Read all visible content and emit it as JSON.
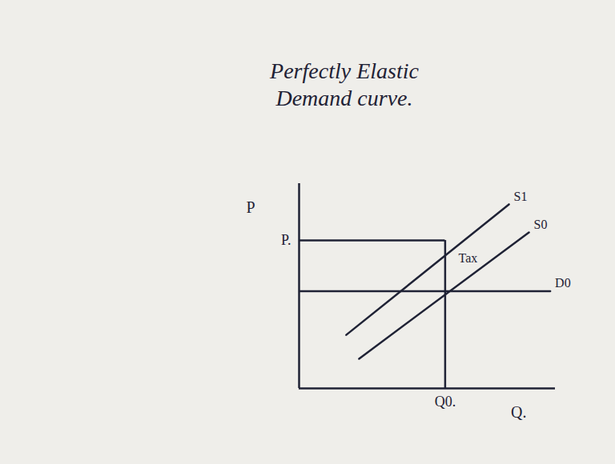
{
  "chart_data": {
    "type": "line",
    "title": "Perfectly Elastic Demand curve.",
    "x_label": "Q.",
    "y_label": "P",
    "xlim": [
      0,
      10
    ],
    "ylim": [
      0,
      8
    ],
    "xticks": [
      {
        "value": 5.7,
        "label": "Q0."
      }
    ],
    "yticks": [
      {
        "value": 5.78,
        "label": "P."
      }
    ],
    "grid": false,
    "series": [
      {
        "name": "S1",
        "color": "#1f2235",
        "x": [
          1.84,
          8.19
        ],
        "values": [
          2.09,
          7.19
        ]
      },
      {
        "name": "S0",
        "color": "#1f2235",
        "x": [
          2.34,
          8.97
        ],
        "values": [
          1.16,
          6.09
        ]
      },
      {
        "name": "D0",
        "color": "#1f2235",
        "x": [
          0,
          9.8
        ],
        "values": [
          3.8,
          3.8
        ]
      }
    ],
    "annotations": [
      {
        "text": "Tax",
        "x": 6.22,
        "y": 5.09
      }
    ]
  }
}
